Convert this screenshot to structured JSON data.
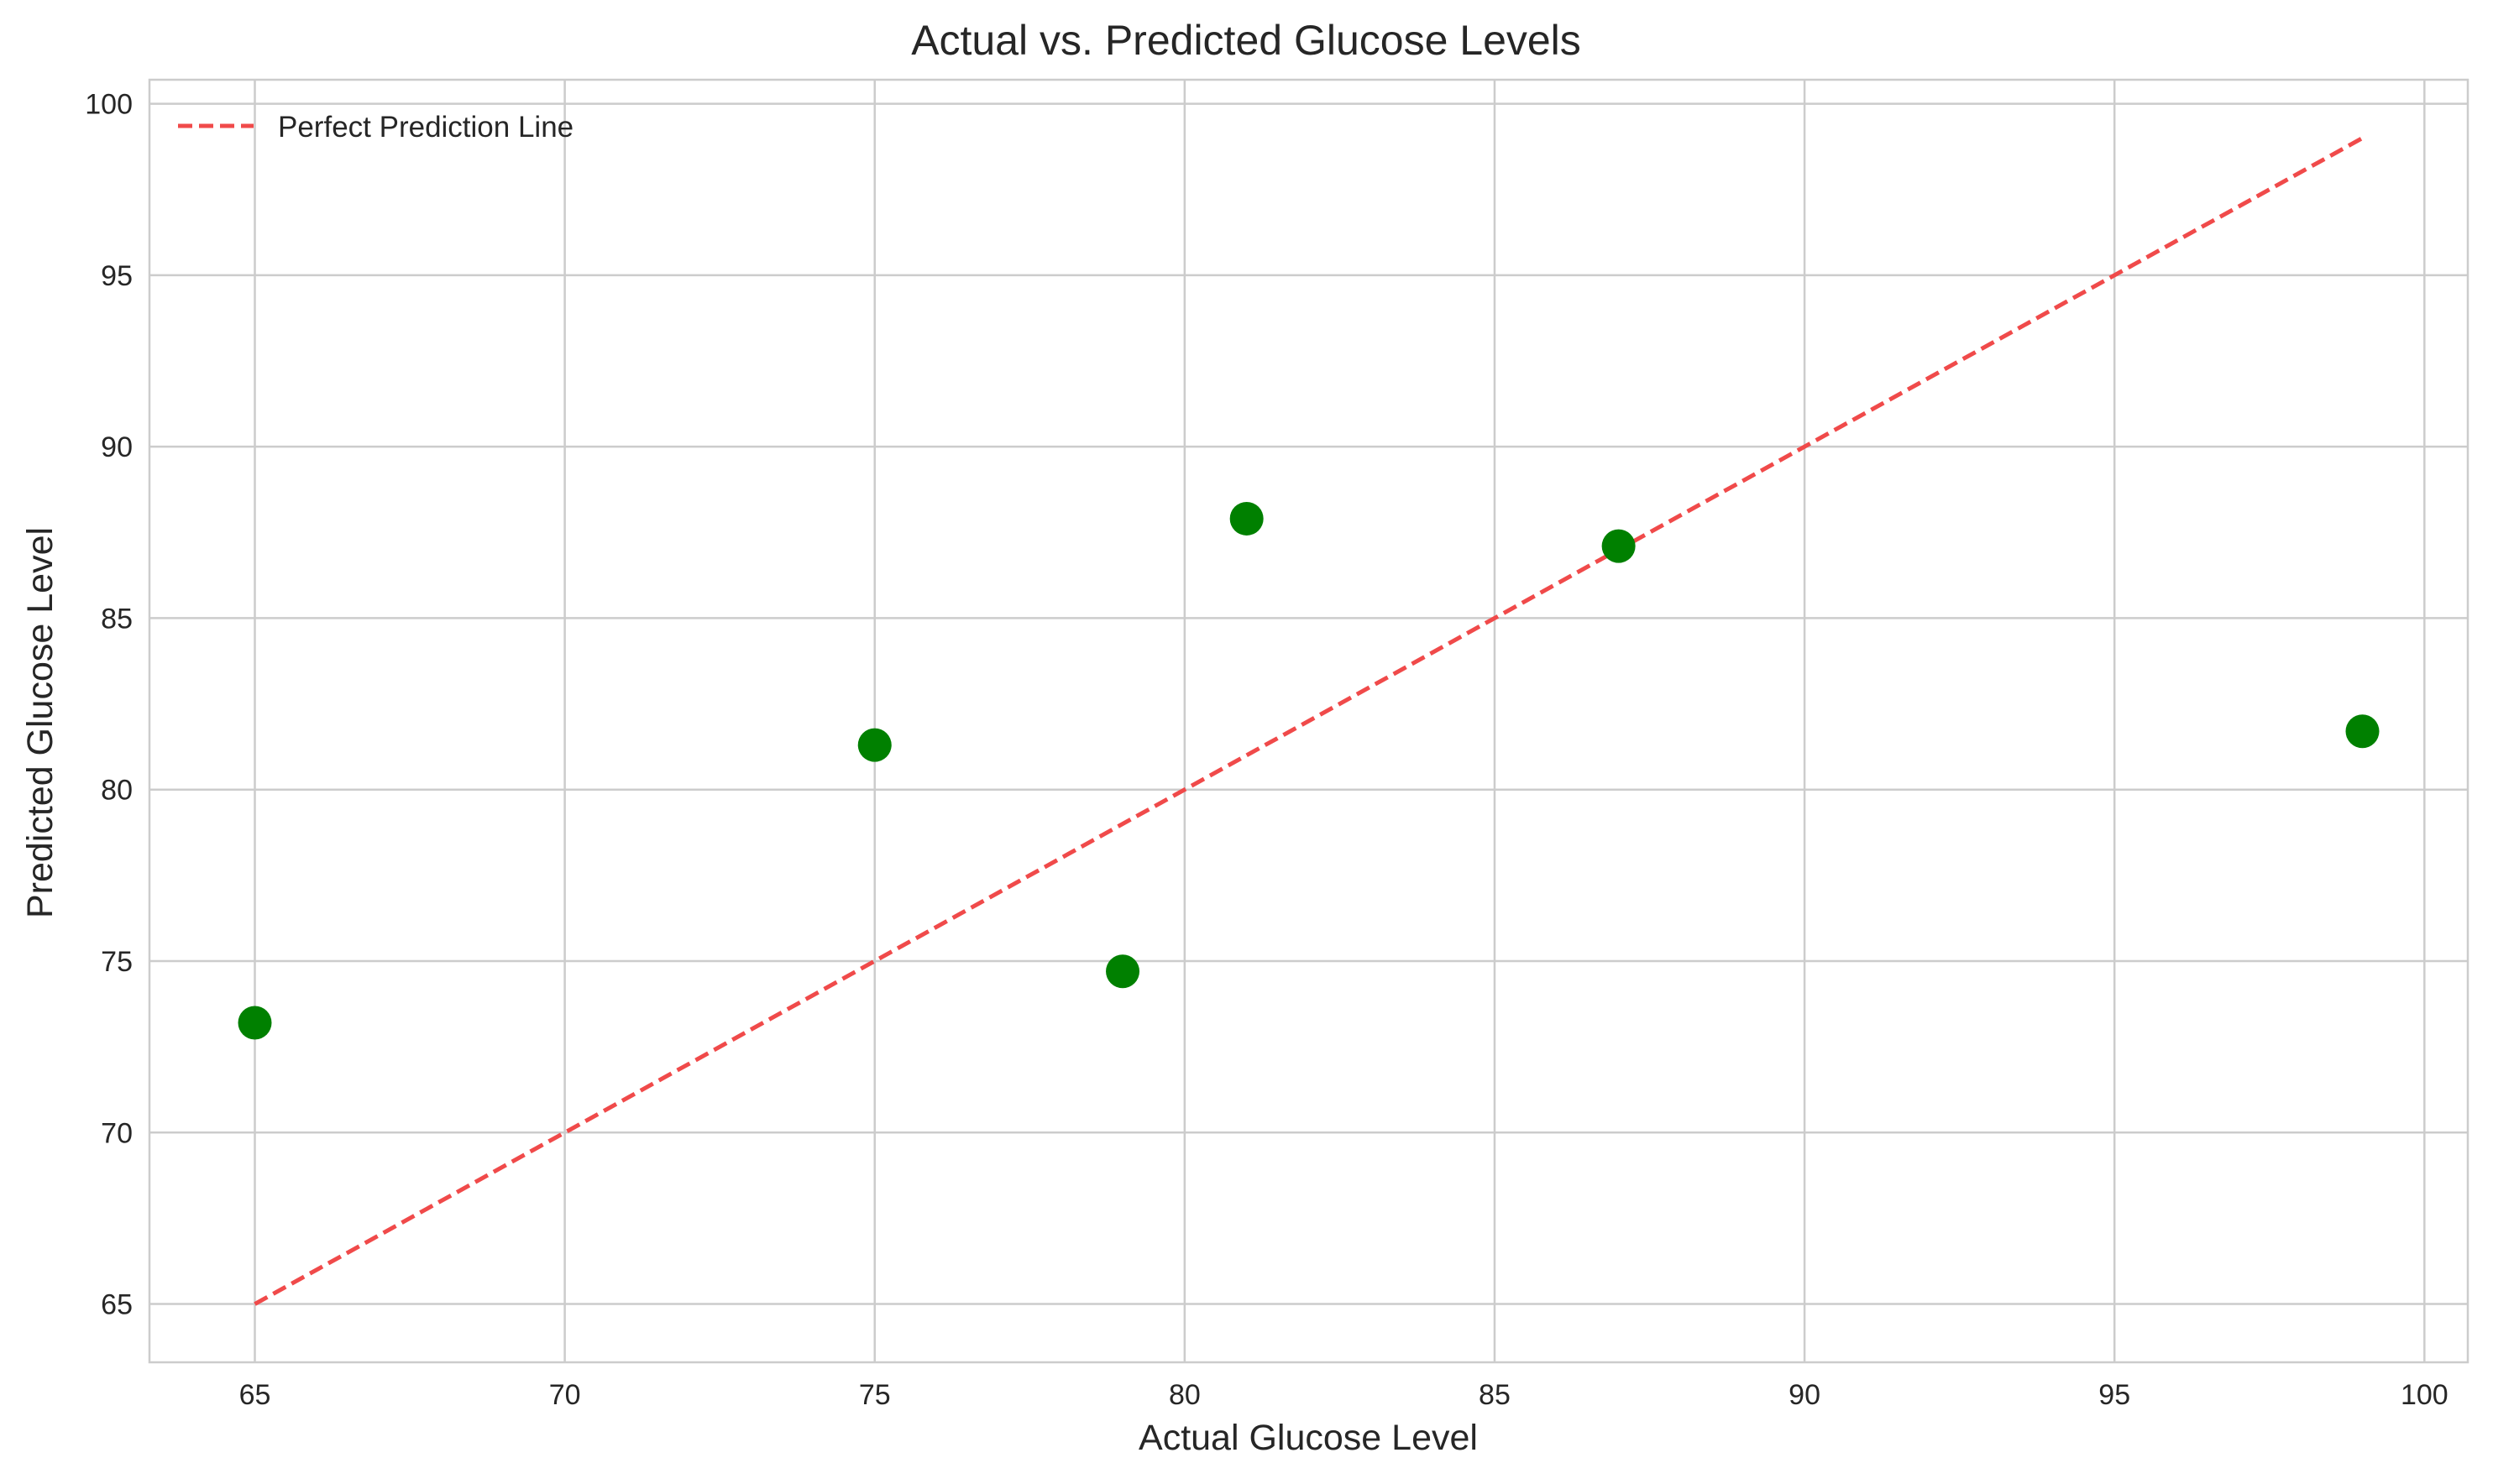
{
  "chart_data": {
    "type": "scatter",
    "title": "Actual vs. Predicted Glucose Levels",
    "xlabel": "Actual Glucose Level",
    "ylabel": "Predicted Glucose Level",
    "xlim": [
      63.3,
      100.7
    ],
    "ylim": [
      63.3,
      100.7
    ],
    "xticks": [
      65,
      70,
      75,
      80,
      85,
      90,
      95,
      100
    ],
    "yticks": [
      65,
      70,
      75,
      80,
      85,
      90,
      95,
      100
    ],
    "grid": true,
    "legend_position": "top-left",
    "series": [
      {
        "type": "scatter",
        "color": "#008000",
        "points": [
          {
            "x": 65,
            "y": 73.2
          },
          {
            "x": 75,
            "y": 81.3
          },
          {
            "x": 79,
            "y": 74.7
          },
          {
            "x": 81,
            "y": 87.9
          },
          {
            "x": 87,
            "y": 87.1
          },
          {
            "x": 99,
            "y": 81.7
          }
        ]
      },
      {
        "type": "line",
        "name": "Perfect Prediction Line",
        "color": "#f04a4a",
        "dashed": true,
        "points": [
          {
            "x": 65,
            "y": 65
          },
          {
            "x": 99,
            "y": 99
          }
        ]
      }
    ]
  }
}
